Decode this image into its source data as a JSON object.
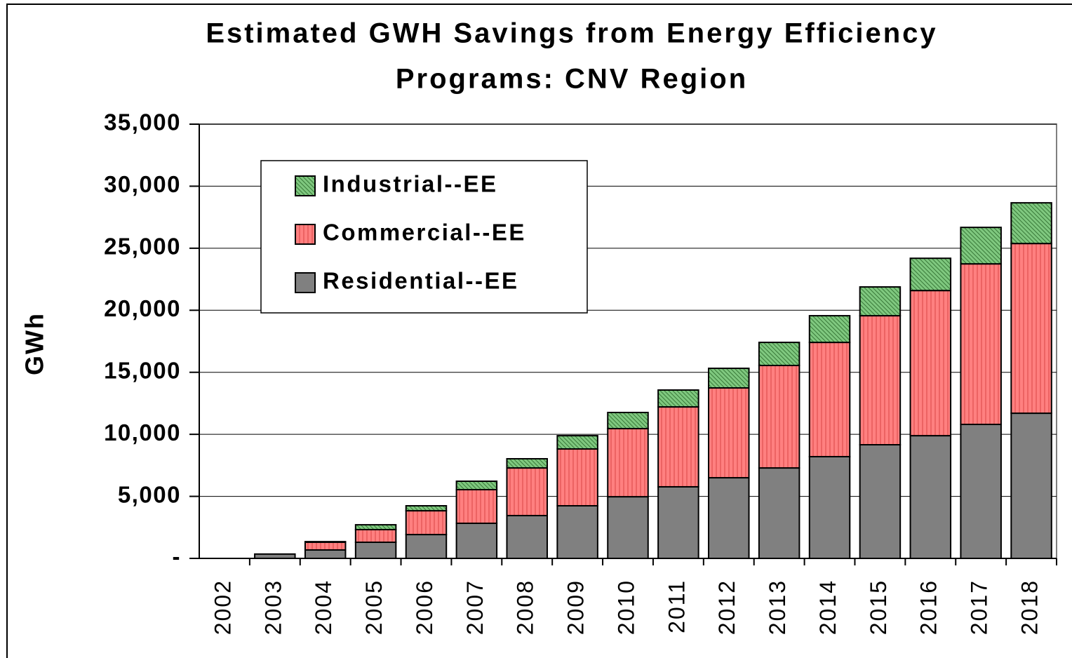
{
  "chart_data": {
    "type": "stacked_bar",
    "title": [
      "Estimated GWH Savings from Energy Efficiency",
      "Programs: CNV Region"
    ],
    "y_label": "GWh",
    "categories": [
      "2002",
      "2003",
      "2004",
      "2005",
      "2006",
      "2007",
      "2008",
      "2009",
      "2010",
      "2011",
      "2012",
      "2013",
      "2014",
      "2015",
      "2016",
      "2017",
      "2018"
    ],
    "series": [
      {
        "name": "Residential--EE",
        "color": "#808080",
        "values": [
          0,
          350,
          680,
          1300,
          1920,
          2830,
          3450,
          4240,
          4970,
          5770,
          6500,
          7290,
          8200,
          9160,
          9890,
          10800,
          11700
        ]
      },
      {
        "name": "Commercial--EE",
        "color": "#ff8080",
        "values": [
          0,
          0,
          620,
          1020,
          1920,
          2710,
          3840,
          4580,
          5490,
          6440,
          7240,
          8260,
          9210,
          10400,
          11700,
          12940,
          13680
        ]
      },
      {
        "name": "Industrial--EE",
        "color": "#7fc87f",
        "values": [
          0,
          0,
          50,
          390,
          400,
          680,
          740,
          1070,
          1300,
          1360,
          1580,
          1860,
          2150,
          2320,
          2600,
          2940,
          3280
        ]
      }
    ],
    "ylim": [
      0,
      35000
    ],
    "yticks": [
      {
        "value": 0,
        "label": "-"
      },
      {
        "value": 5000,
        "label": "5,000"
      },
      {
        "value": 10000,
        "label": "10,000"
      },
      {
        "value": 15000,
        "label": "15,000"
      },
      {
        "value": 20000,
        "label": "20,000"
      },
      {
        "value": 25000,
        "label": "25,000"
      },
      {
        "value": 30000,
        "label": "30,000"
      },
      {
        "value": 35000,
        "label": "35,000"
      }
    ],
    "grid": true,
    "legend": "upper left"
  }
}
